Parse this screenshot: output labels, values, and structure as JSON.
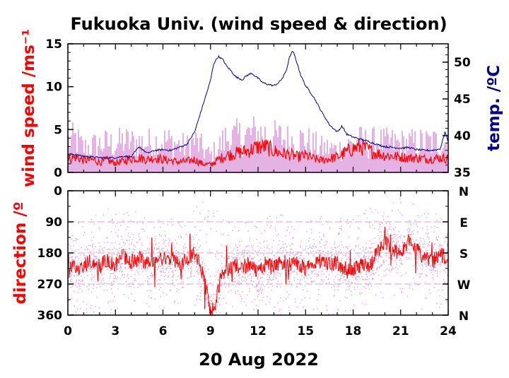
{
  "chart_data": [
    {
      "type": "line",
      "title": "Fukuoka Univ. (wind speed & direction)",
      "ylabel": "wind speed /ms⁻¹",
      "y2label": "temp. /ºC",
      "x_ticks": [
        "0",
        "3",
        "6",
        "9",
        "12",
        "15",
        "18",
        "21",
        "24"
      ],
      "ylim": [
        0,
        15
      ],
      "y_ticks": [
        "0",
        "5",
        "10",
        "15"
      ],
      "y2lim": [
        35,
        52.5
      ],
      "y2_ticks": [
        "35",
        "40",
        "45",
        "50"
      ],
      "colors": {
        "speed_mean": "#ff0000",
        "speed_gust": "#dda0dd",
        "temperature": "#00008b"
      },
      "series": [
        {
          "axis": "left",
          "kind": "gust-band",
          "values": [
            [
              0,
              4.5
            ],
            [
              0.5,
              4.8
            ],
            [
              1,
              3.5
            ],
            [
              1.5,
              3.8
            ],
            [
              2,
              4
            ],
            [
              2.5,
              4.2
            ],
            [
              3,
              4
            ],
            [
              3.5,
              4.5
            ],
            [
              4,
              4.3
            ],
            [
              4.5,
              4.4
            ],
            [
              5,
              4.2
            ],
            [
              5.5,
              4.4
            ],
            [
              6,
              4.6
            ],
            [
              6.5,
              4.4
            ],
            [
              7,
              4
            ],
            [
              7.5,
              3.6
            ],
            [
              8,
              4.5
            ],
            [
              8.5,
              3.5
            ],
            [
              9,
              2.4
            ],
            [
              9.5,
              3.6
            ],
            [
              10,
              5
            ],
            [
              10.5,
              5
            ],
            [
              11,
              5.2
            ],
            [
              11.5,
              5.5
            ],
            [
              12,
              5.6
            ],
            [
              12.5,
              5.5
            ],
            [
              13,
              5
            ],
            [
              13.5,
              5
            ],
            [
              14,
              4.6
            ],
            [
              14.5,
              4.8
            ],
            [
              15,
              4.6
            ],
            [
              15.5,
              4
            ],
            [
              16,
              3.5
            ],
            [
              16.5,
              3.5
            ],
            [
              17,
              3.2
            ],
            [
              17.5,
              3.8
            ],
            [
              18,
              4.2
            ],
            [
              18.5,
              4.5
            ],
            [
              19,
              4.2
            ],
            [
              19.5,
              4.4
            ],
            [
              20,
              4.2
            ],
            [
              20.5,
              4.3
            ],
            [
              21,
              4.1
            ],
            [
              21.5,
              4.2
            ],
            [
              22,
              4.2
            ],
            [
              22.5,
              4.3
            ],
            [
              23,
              4.3
            ],
            [
              23.5,
              4.4
            ],
            [
              24,
              4.3
            ]
          ]
        },
        {
          "axis": "left",
          "kind": "mean",
          "values": [
            [
              0,
              1.5
            ],
            [
              0.5,
              1.8
            ],
            [
              1,
              1.4
            ],
            [
              1.5,
              1.5
            ],
            [
              2,
              1.2
            ],
            [
              2.5,
              1.4
            ],
            [
              3,
              1.1
            ],
            [
              3.5,
              1.3
            ],
            [
              4,
              1.6
            ],
            [
              4.5,
              1.7
            ],
            [
              5,
              1.5
            ],
            [
              5.5,
              1.7
            ],
            [
              6,
              1.5
            ],
            [
              6.5,
              1.4
            ],
            [
              7,
              1.2
            ],
            [
              7.5,
              1.3
            ],
            [
              8,
              1.5
            ],
            [
              8.5,
              1
            ],
            [
              9,
              0.9
            ],
            [
              9.5,
              1.5
            ],
            [
              10,
              2
            ],
            [
              10.5,
              2.2
            ],
            [
              11,
              2.4
            ],
            [
              11.5,
              2.6
            ],
            [
              12,
              3
            ],
            [
              12.5,
              3
            ],
            [
              13,
              2.5
            ],
            [
              13.5,
              2.2
            ],
            [
              14,
              2.1
            ],
            [
              14.5,
              1.8
            ],
            [
              15,
              2
            ],
            [
              15.5,
              1.6
            ],
            [
              16,
              1.4
            ],
            [
              16.5,
              1.6
            ],
            [
              17,
              1.8
            ],
            [
              17.5,
              2.3
            ],
            [
              18,
              2.8
            ],
            [
              18.5,
              3
            ],
            [
              19,
              2.6
            ],
            [
              19.5,
              2.2
            ],
            [
              20,
              2
            ],
            [
              20.5,
              1.9
            ],
            [
              21,
              1.8
            ],
            [
              21.5,
              1.7
            ],
            [
              22,
              1.7
            ],
            [
              22.5,
              1.6
            ],
            [
              23,
              1.6
            ],
            [
              23.5,
              1.7
            ],
            [
              24,
              1.6
            ]
          ]
        },
        {
          "axis": "right",
          "kind": "temperature",
          "values": [
            [
              0,
              37.5
            ],
            [
              0.5,
              37.4
            ],
            [
              1,
              37.2
            ],
            [
              1.5,
              37.1
            ],
            [
              2,
              37.0
            ],
            [
              2.5,
              37.0
            ],
            [
              3,
              37.0
            ],
            [
              3.5,
              37.2
            ],
            [
              4,
              37.1
            ],
            [
              4.5,
              38.5
            ],
            [
              5,
              37.6
            ],
            [
              5.5,
              38.0
            ],
            [
              6,
              38.1
            ],
            [
              6.5,
              38.0
            ],
            [
              7,
              38.4
            ],
            [
              7.5,
              38.8
            ],
            [
              8,
              40.5
            ],
            [
              8.5,
              44
            ],
            [
              9,
              47.5
            ],
            [
              9.2,
              49.8
            ],
            [
              9.5,
              50.8
            ],
            [
              9.8,
              50.3
            ],
            [
              10,
              49.5
            ],
            [
              10.3,
              48.8
            ],
            [
              10.6,
              48.0
            ],
            [
              11,
              47.6
            ],
            [
              11.3,
              48.2
            ],
            [
              11.6,
              48.5
            ],
            [
              12,
              47.8
            ],
            [
              12.3,
              47.2
            ],
            [
              12.6,
              47.0
            ],
            [
              13,
              46.8
            ],
            [
              13.3,
              47.2
            ],
            [
              13.6,
              48.0
            ],
            [
              13.8,
              49.0
            ],
            [
              14,
              50.8
            ],
            [
              14.2,
              51.5
            ],
            [
              14.4,
              50.3
            ],
            [
              14.7,
              48.2
            ],
            [
              15,
              46.8
            ],
            [
              15.5,
              45.3
            ],
            [
              16,
              43.3
            ],
            [
              16.5,
              41.5
            ],
            [
              17,
              40.5
            ],
            [
              17.3,
              41.3
            ],
            [
              17.6,
              40.2
            ],
            [
              18,
              39.8
            ],
            [
              18.5,
              39.5
            ],
            [
              19,
              39.2
            ],
            [
              19.5,
              38.8
            ],
            [
              20,
              38.5
            ],
            [
              20.5,
              38.4
            ],
            [
              21,
              38.3
            ],
            [
              21.5,
              38.4
            ],
            [
              22,
              38.1
            ],
            [
              22.5,
              38.0
            ],
            [
              23,
              38.0
            ],
            [
              23.5,
              38.2
            ],
            [
              23.8,
              40.5
            ],
            [
              24,
              39.2
            ]
          ]
        }
      ]
    },
    {
      "type": "scatter",
      "ylabel": "direction /º",
      "x_ticks": [
        "0",
        "3",
        "6",
        "9",
        "12",
        "15",
        "18",
        "21",
        "24"
      ],
      "ylim": [
        0,
        360
      ],
      "y_inverted": true,
      "y_ticks": [
        "0",
        "90",
        "180",
        "270",
        "360"
      ],
      "y2_ticks": [
        "N",
        "E",
        "S",
        "W",
        "N"
      ],
      "colors": {
        "direction_mean": "#ff0000",
        "direction_raw": "#dda0dd"
      },
      "series": [
        {
          "kind": "raw-spread",
          "values": [
            [
              0,
              90,
              360
            ],
            [
              1.5,
              60,
              350
            ],
            [
              3,
              40,
              360
            ],
            [
              4.5,
              60,
              350
            ],
            [
              6,
              70,
              340
            ],
            [
              7.5,
              100,
              320
            ],
            [
              8.5,
              0,
              360
            ],
            [
              9.5,
              60,
              360
            ],
            [
              10.5,
              90,
              340
            ],
            [
              12,
              80,
              350
            ],
            [
              13.5,
              60,
              360
            ],
            [
              15,
              80,
              340
            ],
            [
              16.5,
              60,
              360
            ],
            [
              18,
              70,
              360
            ],
            [
              19.5,
              40,
              300
            ],
            [
              21,
              20,
              340
            ],
            [
              22.5,
              50,
              350
            ],
            [
              24,
              80,
              330
            ]
          ]
        },
        {
          "kind": "mean",
          "values": [
            [
              0,
              230
            ],
            [
              0.5,
              220
            ],
            [
              1,
              215
            ],
            [
              1.5,
              205
            ],
            [
              2,
              220
            ],
            [
              2.5,
              200
            ],
            [
              3,
              215
            ],
            [
              3.5,
              190
            ],
            [
              4,
              205
            ],
            [
              4.5,
              195
            ],
            [
              5,
              210
            ],
            [
              5.5,
              205
            ],
            [
              6,
              200
            ],
            [
              6.5,
              195
            ],
            [
              7,
              210
            ],
            [
              7.5,
              200
            ],
            [
              8,
              175
            ],
            [
              8.5,
              240
            ],
            [
              8.8,
              300
            ],
            [
              9,
              350
            ],
            [
              9.3,
              330
            ],
            [
              9.6,
              260
            ],
            [
              10,
              230
            ],
            [
              10.5,
              215
            ],
            [
              11,
              225
            ],
            [
              11.5,
              210
            ],
            [
              12,
              235
            ],
            [
              12.5,
              210
            ],
            [
              13,
              225
            ],
            [
              13.5,
              205
            ],
            [
              14,
              215
            ],
            [
              14.5,
              210
            ],
            [
              15,
              225
            ],
            [
              15.5,
              210
            ],
            [
              16,
              200
            ],
            [
              16.5,
              215
            ],
            [
              17,
              210
            ],
            [
              17.5,
              225
            ],
            [
              18,
              230
            ],
            [
              18.5,
              215
            ],
            [
              19,
              220
            ],
            [
              19.5,
              180
            ],
            [
              20,
              150
            ],
            [
              20.5,
              170
            ],
            [
              21,
              190
            ],
            [
              21.5,
              140
            ],
            [
              22,
              170
            ],
            [
              22.5,
              195
            ],
            [
              23,
              205
            ],
            [
              23.5,
              185
            ],
            [
              24,
              195
            ]
          ]
        }
      ]
    }
  ],
  "xlabel": "20 Aug 2022"
}
